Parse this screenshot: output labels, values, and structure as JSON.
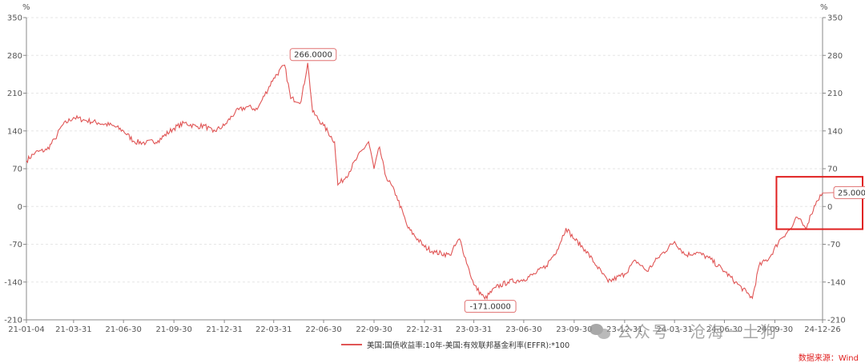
{
  "chart_data": {
    "type": "line",
    "unit_left": "%",
    "unit_right": "%",
    "ylim": [
      -210,
      350
    ],
    "yticks": [
      350,
      280,
      210,
      140,
      70,
      0,
      -70,
      -140,
      -210
    ],
    "x_tick_labels": [
      "21-01-04",
      "21-03-31",
      "21-06-30",
      "21-09-30",
      "21-12-31",
      "22-03-31",
      "22-06-30",
      "22-09-30",
      "22-12-31",
      "23-03-31",
      "23-06-30",
      "23-09-30",
      "23-12-31",
      "24-03-31",
      "24-06-30",
      "24-09-30",
      "24-12-26"
    ],
    "series": [
      {
        "name": "美国:国债收益率:10年-美国:有效联邦基金利率(EFFR):*100",
        "color": "#e05555",
        "points": [
          [
            "21-01-04",
            85
          ],
          [
            "21-01-20",
            100
          ],
          [
            "21-02-10",
            105
          ],
          [
            "21-02-25",
            125
          ],
          [
            "21-03-10",
            150
          ],
          [
            "21-03-31",
            165
          ],
          [
            "21-04-20",
            160
          ],
          [
            "21-05-15",
            155
          ],
          [
            "21-06-10",
            150
          ],
          [
            "21-06-30",
            140
          ],
          [
            "21-07-20",
            120
          ],
          [
            "21-08-10",
            118
          ],
          [
            "21-09-01",
            122
          ],
          [
            "21-09-30",
            145
          ],
          [
            "21-10-20",
            155
          ],
          [
            "21-11-10",
            148
          ],
          [
            "21-11-25",
            150
          ],
          [
            "21-12-10",
            138
          ],
          [
            "21-12-31",
            150
          ],
          [
            "22-01-20",
            175
          ],
          [
            "22-02-10",
            185
          ],
          [
            "22-03-01",
            180
          ],
          [
            "22-03-10",
            198
          ],
          [
            "22-03-31",
            238
          ],
          [
            "22-04-20",
            262
          ],
          [
            "22-05-01",
            200
          ],
          [
            "22-05-20",
            195
          ],
          [
            "22-06-01",
            266
          ],
          [
            "22-06-10",
            175
          ],
          [
            "22-06-30",
            150
          ],
          [
            "22-07-20",
            120
          ],
          [
            "22-07-26",
            40
          ],
          [
            "22-08-10",
            55
          ],
          [
            "22-08-30",
            90
          ],
          [
            "22-09-20",
            120
          ],
          [
            "22-09-30",
            70
          ],
          [
            "22-10-10",
            110
          ],
          [
            "22-10-20",
            60
          ],
          [
            "22-11-10",
            20
          ],
          [
            "22-12-01",
            -40
          ],
          [
            "22-12-31",
            -75
          ],
          [
            "23-01-20",
            -85
          ],
          [
            "23-02-15",
            -90
          ],
          [
            "23-03-05",
            -60
          ],
          [
            "23-03-20",
            -110
          ],
          [
            "23-03-31",
            -145
          ],
          [
            "23-04-20",
            -171
          ],
          [
            "23-05-10",
            -150
          ],
          [
            "23-06-01",
            -140
          ],
          [
            "23-06-30",
            -135
          ],
          [
            "23-07-20",
            -125
          ],
          [
            "23-08-10",
            -110
          ],
          [
            "23-08-30",
            -80
          ],
          [
            "23-09-15",
            -40
          ],
          [
            "23-09-30",
            -60
          ],
          [
            "23-10-20",
            -80
          ],
          [
            "23-11-10",
            -110
          ],
          [
            "23-12-01",
            -140
          ],
          [
            "23-12-31",
            -125
          ],
          [
            "24-01-20",
            -100
          ],
          [
            "24-02-10",
            -120
          ],
          [
            "24-03-01",
            -95
          ],
          [
            "24-03-31",
            -65
          ],
          [
            "24-04-20",
            -90
          ],
          [
            "24-05-10",
            -85
          ],
          [
            "24-06-01",
            -95
          ],
          [
            "24-06-30",
            -120
          ],
          [
            "24-07-20",
            -140
          ],
          [
            "24-08-10",
            -160
          ],
          [
            "24-08-20",
            -170
          ],
          [
            "24-09-01",
            -110
          ],
          [
            "24-09-20",
            -95
          ],
          [
            "24-10-10",
            -60
          ],
          [
            "24-10-30",
            -40
          ],
          [
            "24-11-10",
            -20
          ],
          [
            "24-11-25",
            -40
          ],
          [
            "24-12-05",
            -15
          ],
          [
            "24-12-15",
            10
          ],
          [
            "24-12-26",
            25
          ]
        ]
      }
    ],
    "annotations": [
      {
        "label": "266.0000",
        "x": "22-06-01",
        "y": 266
      },
      {
        "label": "-171.0000",
        "x": "23-04-20",
        "y": -171
      },
      {
        "label": "25.0000",
        "x": "24-12-26",
        "y": 25
      }
    ],
    "highlight_box": {
      "x_from": "24-09-30",
      "x_to": "24-12-26",
      "y_from": 55,
      "y_to": -42,
      "color": "#e02020"
    },
    "grid": true,
    "legend_position": "bottom-center"
  },
  "source_label": "数据来源：Wind",
  "watermark_label": "公众号 · 沧海一土狗"
}
